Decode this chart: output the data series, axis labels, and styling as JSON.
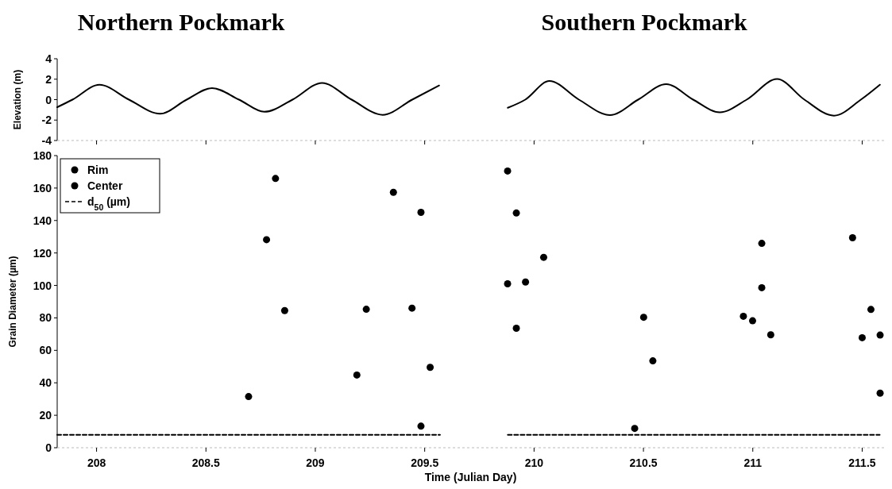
{
  "chart_data": [
    {
      "type": "line",
      "annotations": [
        "Northern Pockmark",
        "Southern Pockmark"
      ],
      "ylabel": "Elevation (m)",
      "xlim": [
        207.82,
        211.6
      ],
      "xticks": [
        208,
        208.5,
        209,
        209.5,
        210,
        210.5,
        211,
        211.5
      ],
      "ylim": [
        -4,
        4
      ],
      "yticks": [
        -4,
        -2,
        0,
        2,
        4
      ],
      "tick_labels": "y",
      "grid": false,
      "legend": false,
      "line_style": "solid",
      "marker": "none",
      "series": [
        {
          "color": "#000000",
          "x": [
            207.82,
            207.89,
            208.013,
            208.148,
            208.29,
            208.412,
            208.528,
            208.651,
            208.767,
            208.896,
            209.031,
            209.166,
            209.308,
            209.443,
            209.566,
            209.7,
            209.88,
            209.96,
            210.07,
            210.205,
            210.347,
            210.476,
            210.604,
            210.727,
            210.849,
            210.972,
            211.111,
            211.236,
            211.371,
            211.494,
            211.581
          ],
          "values": [
            -0.74,
            0,
            1.46,
            0,
            -1.38,
            0,
            1.13,
            0,
            -1.19,
            0,
            1.63,
            0,
            -1.49,
            0,
            1.38,
            null,
            -0.8,
            0,
            1.82,
            0,
            -1.52,
            0,
            1.52,
            0,
            -1.24,
            0,
            2.01,
            0,
            -1.57,
            0,
            1.46
          ]
        }
      ]
    },
    {
      "type": "scatter",
      "xlabel": "Time (Julian Day)",
      "ylabel": "Grain Diameter (µm)",
      "xlim": [
        207.82,
        211.6
      ],
      "xticks": [
        208,
        208.5,
        209,
        209.5,
        210,
        210.5,
        211,
        211.5
      ],
      "ylim": [
        0,
        180
      ],
      "yticks": [
        0,
        20,
        40,
        60,
        80,
        100,
        120,
        140,
        160,
        180
      ],
      "grid": false,
      "legend": "top left",
      "marker": "circle",
      "series": [
        {
          "name": "Rim",
          "color": "#000000",
          "x": [
            208.695,
            208.818,
            209.19,
            209.357,
            209.483,
            209.525,
            209.879,
            209.919,
            210.044,
            210.46,
            210.543,
            210.999,
            211.041,
            211.456,
            211.54,
            211.582
          ],
          "values": [
            31.5,
            165.9,
            44.8,
            157.4,
            145,
            49.5,
            170.5,
            144.6,
            117.3,
            11.9,
            53.5,
            78.2,
            125.9,
            129.4,
            85.2,
            69.4
          ]
        },
        {
          "name": "Center",
          "color": "#000000",
          "x": [
            208.777,
            208.86,
            209.233,
            209.442,
            209.483,
            209.879,
            209.919,
            209.961,
            210.501,
            210.957,
            211.041,
            211.082,
            211.5,
            211.582
          ],
          "values": [
            128.2,
            84.5,
            85.3,
            86,
            13.3,
            101,
            73.6,
            102.1,
            80.4,
            81,
            98.6,
            69.6,
            67.8,
            33.6
          ]
        },
        {
          "name": "d$_{50}$ (µm)",
          "type": "line",
          "line_style": "dashed",
          "marker": "none",
          "color": "#000000",
          "x": [
            207.82,
            209.57,
            209.7,
            209.88,
            211.58
          ],
          "values": [
            8,
            8,
            null,
            8,
            8
          ]
        }
      ]
    }
  ]
}
